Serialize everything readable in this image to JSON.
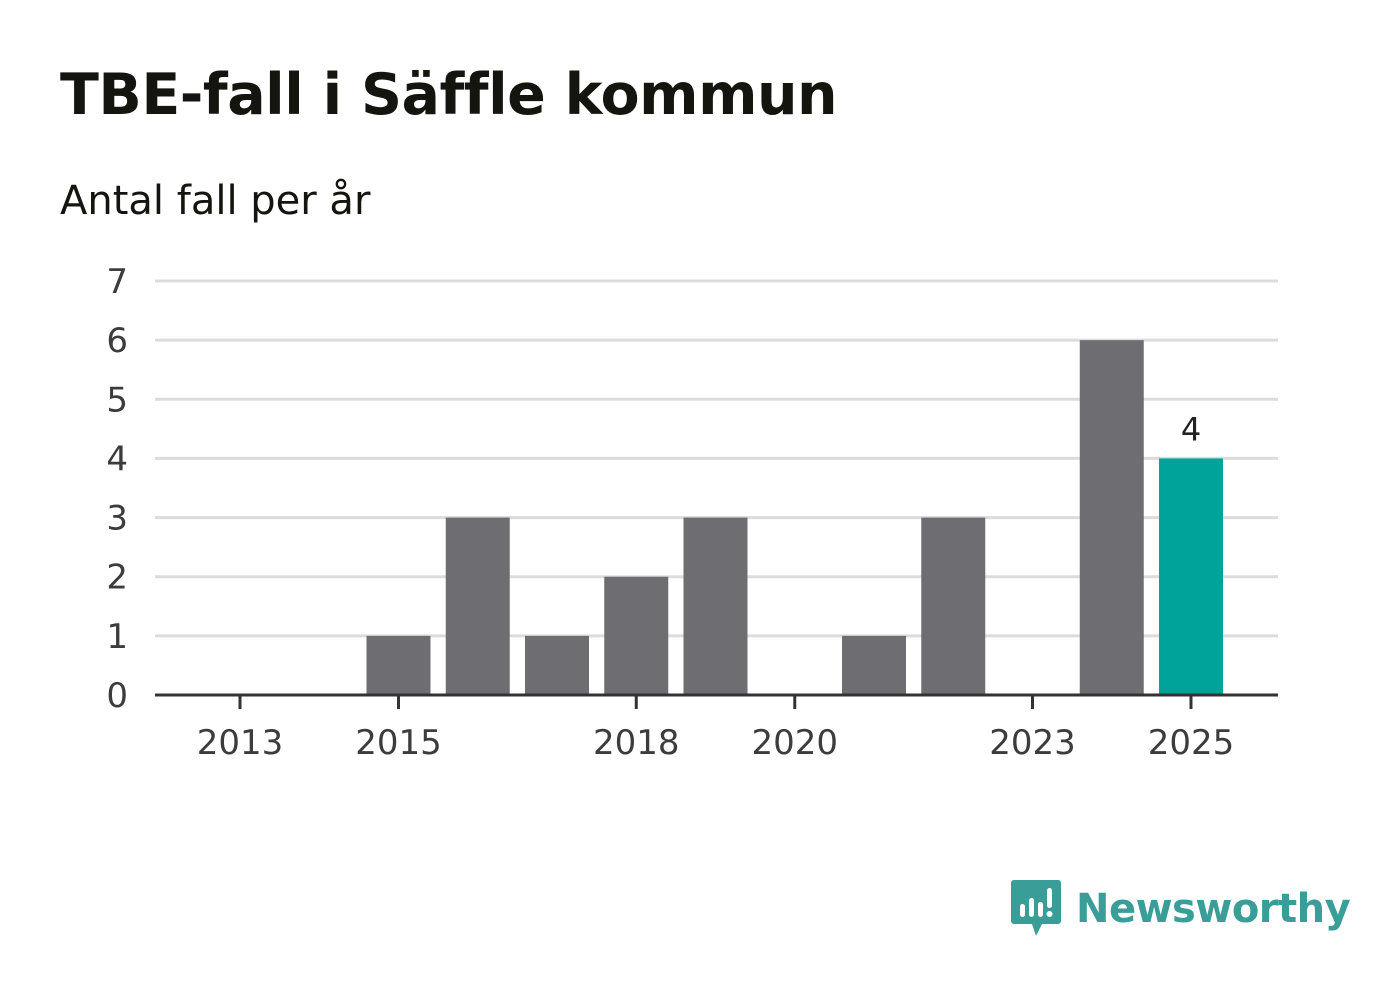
{
  "header": {
    "title": "TBE-fall i Säffle kommun",
    "subtitle": "Antal fall per år"
  },
  "brand": {
    "name": "Newsworthy",
    "color": "#3a9e98"
  },
  "colors": {
    "bar": "#6e6d72",
    "highlight": "#00a399",
    "grid": "#dcdcdc",
    "axis": "#333333"
  },
  "chart_data": {
    "type": "bar",
    "title": "TBE-fall i Säffle kommun",
    "subtitle": "Antal fall per år",
    "xlabel": "",
    "ylabel": "",
    "categories": [
      2013,
      2014,
      2015,
      2016,
      2017,
      2018,
      2019,
      2020,
      2021,
      2022,
      2023,
      2024,
      2025
    ],
    "values": [
      0,
      0,
      1,
      3,
      1,
      2,
      3,
      0,
      1,
      3,
      0,
      6,
      4
    ],
    "highlight_index": 12,
    "ylim": [
      0,
      7
    ],
    "yticks": [
      0,
      1,
      2,
      3,
      4,
      5,
      6,
      7
    ],
    "xtick_labels": [
      "2013",
      "2015",
      "2018",
      "2020",
      "2023",
      "2025"
    ],
    "data_labels": [
      {
        "category": 2025,
        "text": "4"
      }
    ],
    "grid": true,
    "legend": "none"
  }
}
